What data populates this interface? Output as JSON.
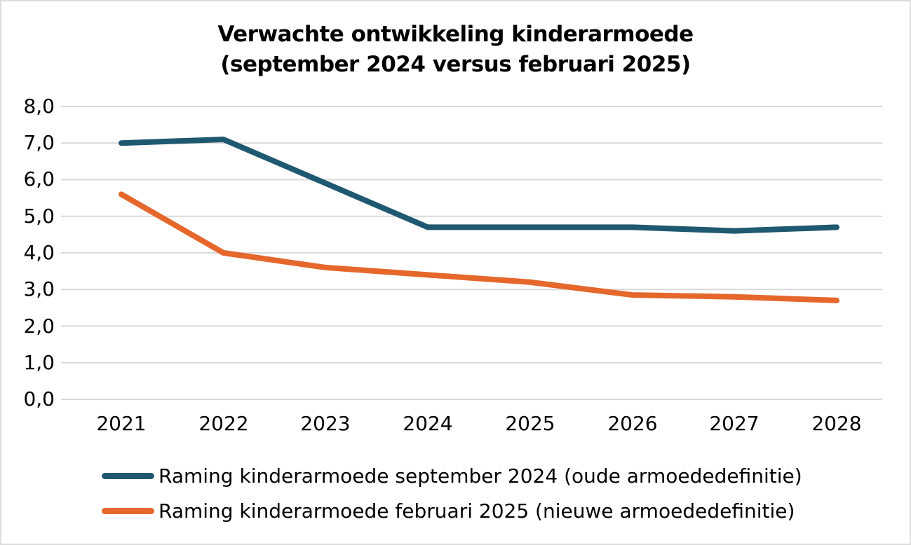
{
  "chart_data": {
    "type": "line",
    "title": "Verwachte ontwikkeling kinderarmoede",
    "subtitle": "(september 2024 versus februari 2025)",
    "categories": [
      "2021",
      "2022",
      "2023",
      "2024",
      "2025",
      "2026",
      "2027",
      "2028"
    ],
    "series": [
      {
        "name": "Raming kinderarmoede september 2024 (oude armoededefinitie)",
        "color": "#1f5871",
        "values": [
          7.0,
          7.1,
          5.9,
          4.7,
          4.7,
          4.7,
          4.6,
          4.7
        ]
      },
      {
        "name": "Raming kinderarmoede februari 2025 (nieuwe armoededefinitie)",
        "color": "#e5672b",
        "values": [
          5.6,
          4.0,
          3.6,
          3.4,
          3.2,
          2.85,
          2.8,
          2.7
        ]
      }
    ],
    "ylim": [
      0,
      8
    ],
    "y_tick_labels": [
      "8,0",
      "7,0",
      "6,0",
      "5,0",
      "4,0",
      "3,0",
      "2,0",
      "1,0",
      "0,0"
    ],
    "xlabel": "",
    "ylabel": "",
    "grid": true,
    "gridline_color": "#d9d9d9",
    "legend_position": "bottom-left"
  }
}
